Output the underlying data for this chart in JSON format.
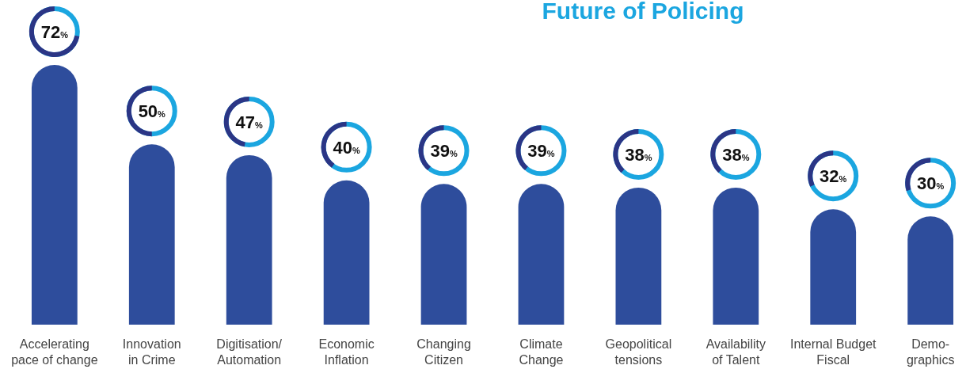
{
  "chart_data": {
    "type": "bar",
    "title": "Future of Policing",
    "categories": [
      "Accelerating\npace of change",
      "Innovation\nin Crime",
      "Digitisation/\nAutomation",
      "Economic\nInflation",
      "Changing\nCitizen",
      "Climate\nChange",
      "Geopolitical\ntensions",
      "Availability\nof Talent",
      "Internal Budget\nFiscal",
      "Demo-\ngraphics"
    ],
    "values": [
      72,
      50,
      47,
      40,
      39,
      39,
      38,
      38,
      32,
      30
    ],
    "value_labels": [
      "72%",
      "50%",
      "47%",
      "40%",
      "39%",
      "39%",
      "38%",
      "38%",
      "32%",
      "30%"
    ],
    "color": "#2e4d9c"
  }
}
